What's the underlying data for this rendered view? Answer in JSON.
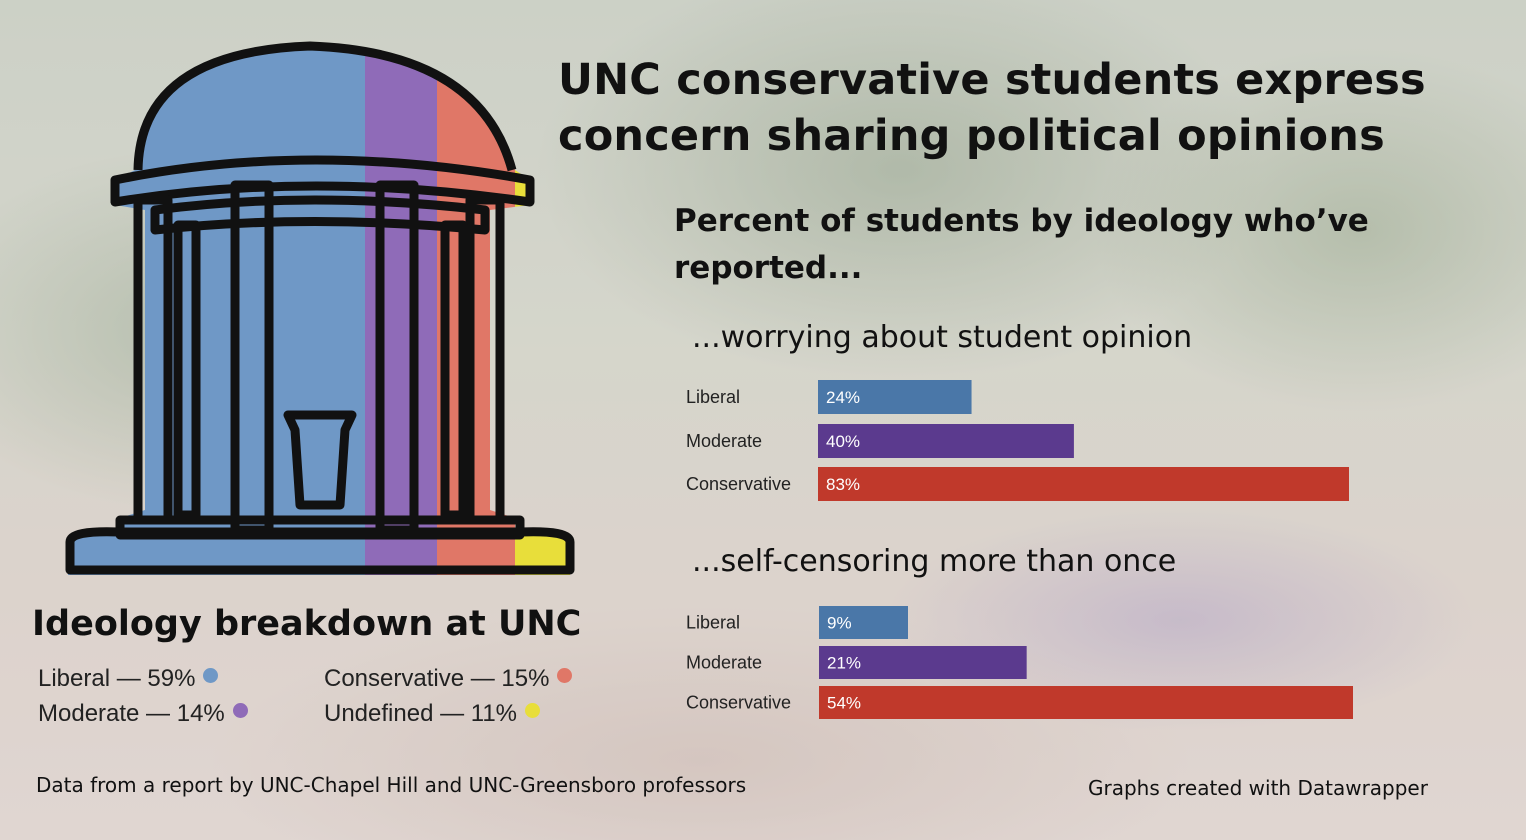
{
  "title": "UNC conservative students express concern sharing political opinions",
  "subtitle": "Percent of students by ideology who’ve reported...",
  "colors": {
    "liberal": "#4a77a8",
    "moderate": "#5b3a8e",
    "conservative": "#c0392b",
    "icon_liberal": "#6f98c6",
    "icon_moderate": "#8f6bb8",
    "icon_conservative": "#e07767",
    "icon_undefined": "#e8de3a"
  },
  "chart_data": [
    {
      "type": "bar",
      "orientation": "horizontal",
      "title": "...worrying about student opinion",
      "categories": [
        "Liberal",
        "Moderate",
        "Conservative"
      ],
      "values": [
        24,
        40,
        83
      ],
      "value_labels": [
        "24%",
        "40%",
        "83%"
      ],
      "xlim": [
        0,
        83
      ],
      "grid": false
    },
    {
      "type": "bar",
      "orientation": "horizontal",
      "title": "...self-censoring more than once",
      "categories": [
        "Liberal",
        "Moderate",
        "Conservative"
      ],
      "values": [
        9,
        21,
        54
      ],
      "value_labels": [
        "9%",
        "21%",
        "54%"
      ],
      "xlim": [
        0,
        54
      ],
      "grid": false
    }
  ],
  "breakdown": {
    "title": "Ideology breakdown at UNC",
    "items": [
      {
        "label": "Liberal — 59%",
        "value": 59,
        "color": "#6f98c6"
      },
      {
        "label": "Moderate — 14%",
        "value": 14,
        "color": "#8f6bb8"
      },
      {
        "label": "Conservative — 15%",
        "value": 15,
        "color": "#e07767"
      },
      {
        "label": "Undefined — 11%",
        "value": 11,
        "color": "#e8de3a"
      }
    ]
  },
  "footer": {
    "source": "Data from a report by UNC-Chapel Hill and UNC-Greensboro professors",
    "credit": "Graphs created with Datawrapper"
  }
}
